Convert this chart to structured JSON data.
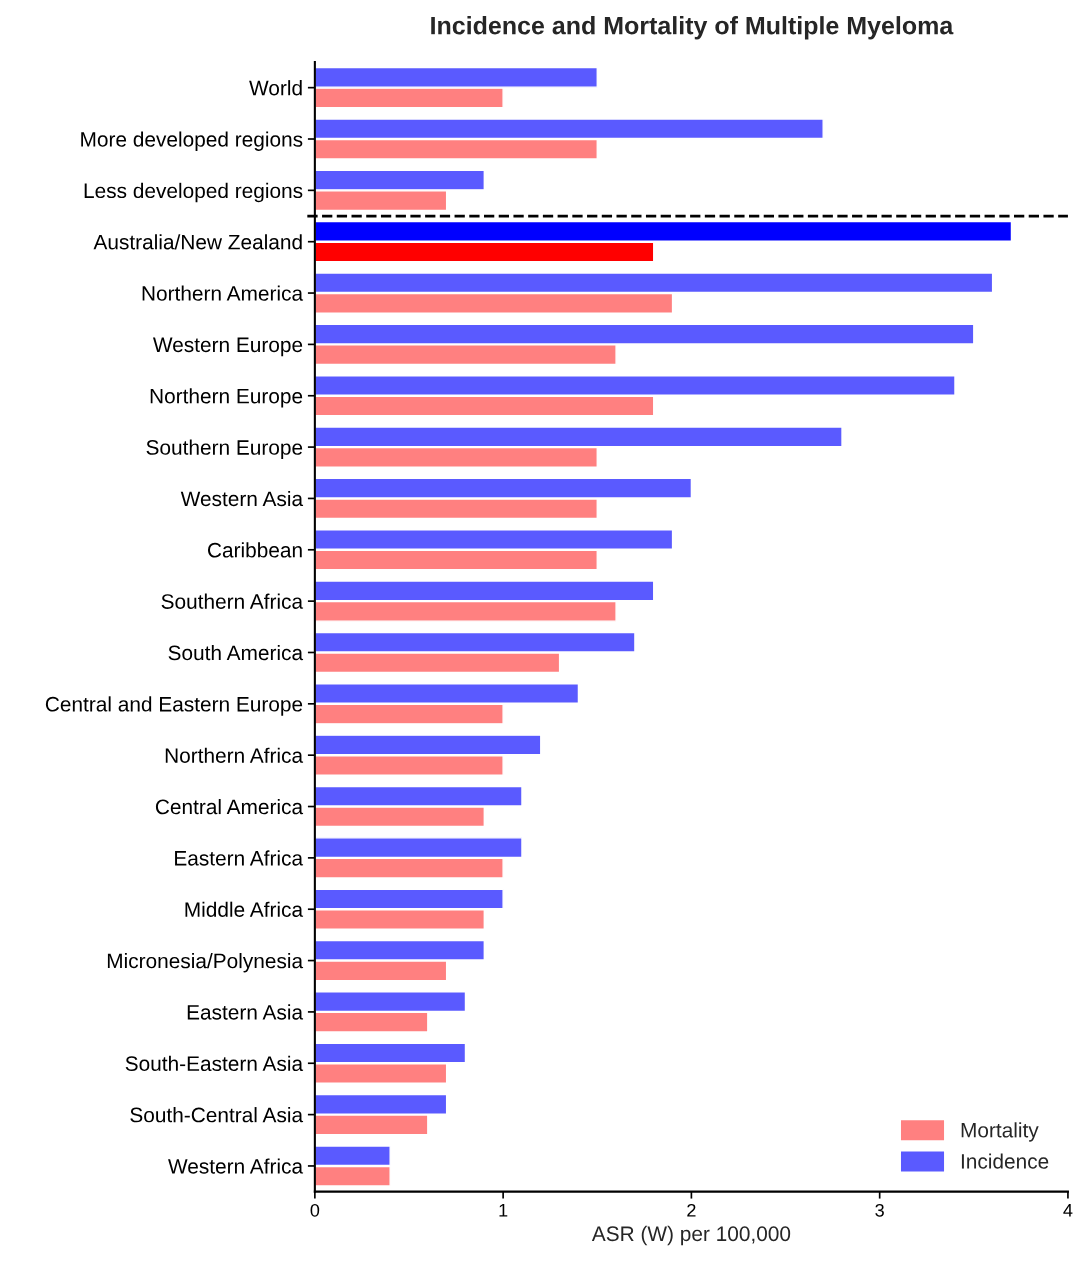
{
  "chart_data": {
    "type": "bar",
    "orientation": "horizontal",
    "title": "Incidence and Mortality of Multiple Myeloma",
    "xlabel": "ASR (W) per 100,000",
    "categories": [
      "World",
      "More developed regions",
      "Less developed regions",
      "Australia/New Zealand",
      "Northern America",
      "Western Europe",
      "Northern Europe",
      "Southern Europe",
      "Western Asia",
      "Caribbean",
      "Southern Africa",
      "South America",
      "Central and Eastern Europe",
      "Northern Africa",
      "Central America",
      "Eastern Africa",
      "Middle Africa",
      "Micronesia/Polynesia",
      "Eastern Asia",
      "South-Eastern Asia",
      "South-Central Asia",
      "Western Africa"
    ],
    "series": [
      {
        "name": "Mortality",
        "color": "#ff8080",
        "colors": [
          "#ff8080",
          "#ff8080",
          "#ff8080",
          "#ff0000",
          "#ff8080",
          "#ff8080",
          "#ff8080",
          "#ff8080",
          "#ff8080",
          "#ff8080",
          "#ff8080",
          "#ff8080",
          "#ff8080",
          "#ff8080",
          "#ff8080",
          "#ff8080",
          "#ff8080",
          "#ff8080",
          "#ff8080",
          "#ff8080",
          "#ff8080",
          "#ff8080"
        ],
        "values": [
          1.0,
          1.5,
          0.7,
          1.8,
          1.9,
          1.6,
          1.8,
          1.5,
          1.5,
          1.5,
          1.6,
          1.3,
          1.0,
          1.0,
          0.9,
          1.0,
          0.9,
          0.7,
          0.6,
          0.7,
          0.6,
          0.4
        ]
      },
      {
        "name": "Incidence",
        "color": "#5a5aff",
        "colors": [
          "#5a5aff",
          "#5a5aff",
          "#5a5aff",
          "#0000ff",
          "#5a5aff",
          "#5a5aff",
          "#5a5aff",
          "#5a5aff",
          "#5a5aff",
          "#5a5aff",
          "#5a5aff",
          "#5a5aff",
          "#5a5aff",
          "#5a5aff",
          "#5a5aff",
          "#5a5aff",
          "#5a5aff",
          "#5a5aff",
          "#5a5aff",
          "#5a5aff",
          "#5a5aff",
          "#5a5aff"
        ],
        "values": [
          1.5,
          2.7,
          0.9,
          3.7,
          3.6,
          3.5,
          3.4,
          2.8,
          2.0,
          1.9,
          1.8,
          1.7,
          1.4,
          1.2,
          1.1,
          1.1,
          1.0,
          0.9,
          0.8,
          0.8,
          0.7,
          0.4
        ]
      }
    ],
    "xlim": [
      0,
      4
    ],
    "xticks": [
      0,
      1,
      2,
      3,
      4
    ],
    "grid": false,
    "legend": "bottom right"
  }
}
